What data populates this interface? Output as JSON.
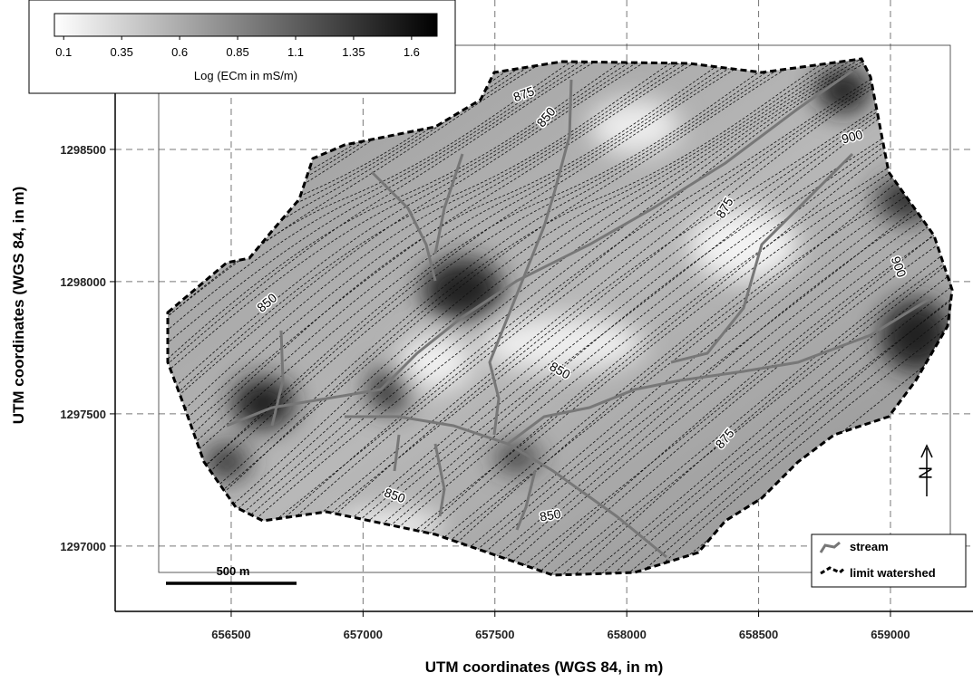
{
  "map": {
    "x_axis_label": "UTM coordinates (WGS 84, in m)",
    "y_axis_label": "UTM coordinates (WGS 84, in m)",
    "xlim": [
      656060,
      659313
    ],
    "xticks": [
      656500,
      657000,
      657500,
      658000,
      658500,
      659000
    ],
    "ylim": [
      1296753,
      1299065
    ],
    "yticks": [
      1297000,
      1297500,
      1298000,
      1298500
    ],
    "grid": true,
    "colorbar": {
      "label": "Log (ECm in mS/m)",
      "lim": [
        0.06,
        1.71
      ],
      "ticks": [
        0.1,
        0.35,
        0.6,
        0.85,
        1.1,
        1.35,
        1.6
      ]
    },
    "contour_labels": [
      "875",
      "850",
      "900",
      "875",
      "900",
      "850",
      "850",
      "875",
      "850",
      "850"
    ],
    "legend": [
      "stream",
      "limit watershed"
    ],
    "scale_bar": "500 m",
    "north": "N"
  }
}
